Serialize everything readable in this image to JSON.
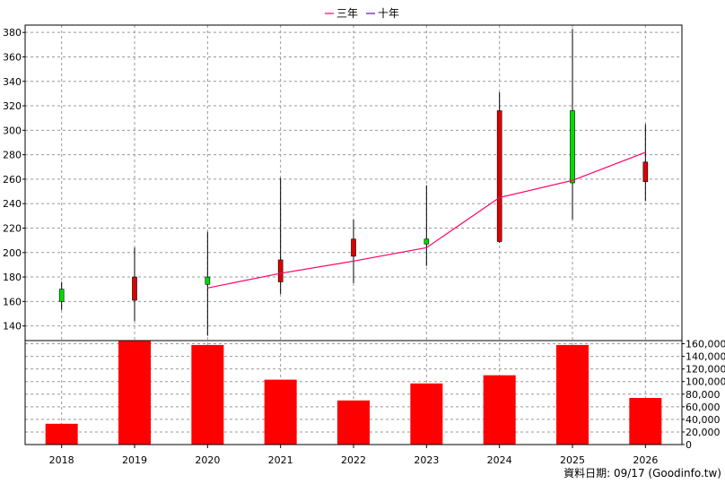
{
  "legend": {
    "items": [
      {
        "label": "三年",
        "color": "#ff0066"
      },
      {
        "label": "十年",
        "color": "#6a0dad"
      }
    ],
    "placement": "top-center"
  },
  "footer": {
    "text": "資料日期: 09/17  (Goodinfo.tw)"
  },
  "chart_data": {
    "type": "candlestick+bar",
    "grid": true,
    "categories": [
      "2018",
      "2019",
      "2020",
      "2021",
      "2022",
      "2023",
      "2024",
      "2025",
      "2026"
    ],
    "price_axis": {
      "ylim": [
        128,
        386
      ],
      "ticks": [
        140,
        160,
        180,
        200,
        220,
        240,
        260,
        280,
        300,
        320,
        340,
        360,
        380
      ],
      "tick_labels": [
        "140",
        "160",
        "180",
        "200",
        "220",
        "240",
        "260",
        "280",
        "300",
        "320",
        "340",
        "360",
        "380"
      ]
    },
    "volume_axis": {
      "ylim": [
        0,
        165000
      ],
      "ticks": [
        0,
        20000,
        40000,
        60000,
        80000,
        100000,
        120000,
        140000,
        160000
      ],
      "tick_labels": [
        "0",
        "20,000",
        "40,000",
        "60,000",
        "80,000",
        "100,000",
        "120,000",
        "140,000",
        "160,000"
      ]
    },
    "candles": [
      {
        "year": "2018",
        "open": 160,
        "high": 176,
        "low": 153,
        "close": 170
      },
      {
        "year": "2019",
        "open": 180,
        "high": 204,
        "low": 144,
        "close": 161
      },
      {
        "year": "2020",
        "open": 174,
        "high": 217,
        "low": 132,
        "close": 180
      },
      {
        "year": "2021",
        "open": 194,
        "high": 261,
        "low": 166,
        "close": 176
      },
      {
        "year": "2022",
        "open": 211,
        "high": 227,
        "low": 175,
        "close": 197
      },
      {
        "year": "2023",
        "open": 207,
        "high": 255,
        "low": 189,
        "close": 211
      },
      {
        "year": "2024",
        "open": 316,
        "high": 331,
        "low": 208,
        "close": 209
      },
      {
        "year": "2025",
        "open": 257,
        "high": 383,
        "low": 227,
        "close": 316
      },
      {
        "year": "2026",
        "open": 274,
        "high": 305,
        "low": 242,
        "close": 258
      }
    ],
    "candle_colors": {
      "up": "#00dd00",
      "down": "#dd0000"
    },
    "volume": {
      "color": "#ff0000",
      "values": [
        33000,
        171000,
        158000,
        103000,
        70000,
        97000,
        110000,
        158000,
        74000
      ]
    },
    "series": [
      {
        "name": "三年",
        "color": "#ff0066",
        "x": [
          "2020",
          "2021",
          "2022",
          "2023",
          "2024",
          "2025",
          "2026"
        ],
        "values": [
          171,
          183,
          193,
          204,
          245,
          259,
          282
        ]
      }
    ]
  }
}
